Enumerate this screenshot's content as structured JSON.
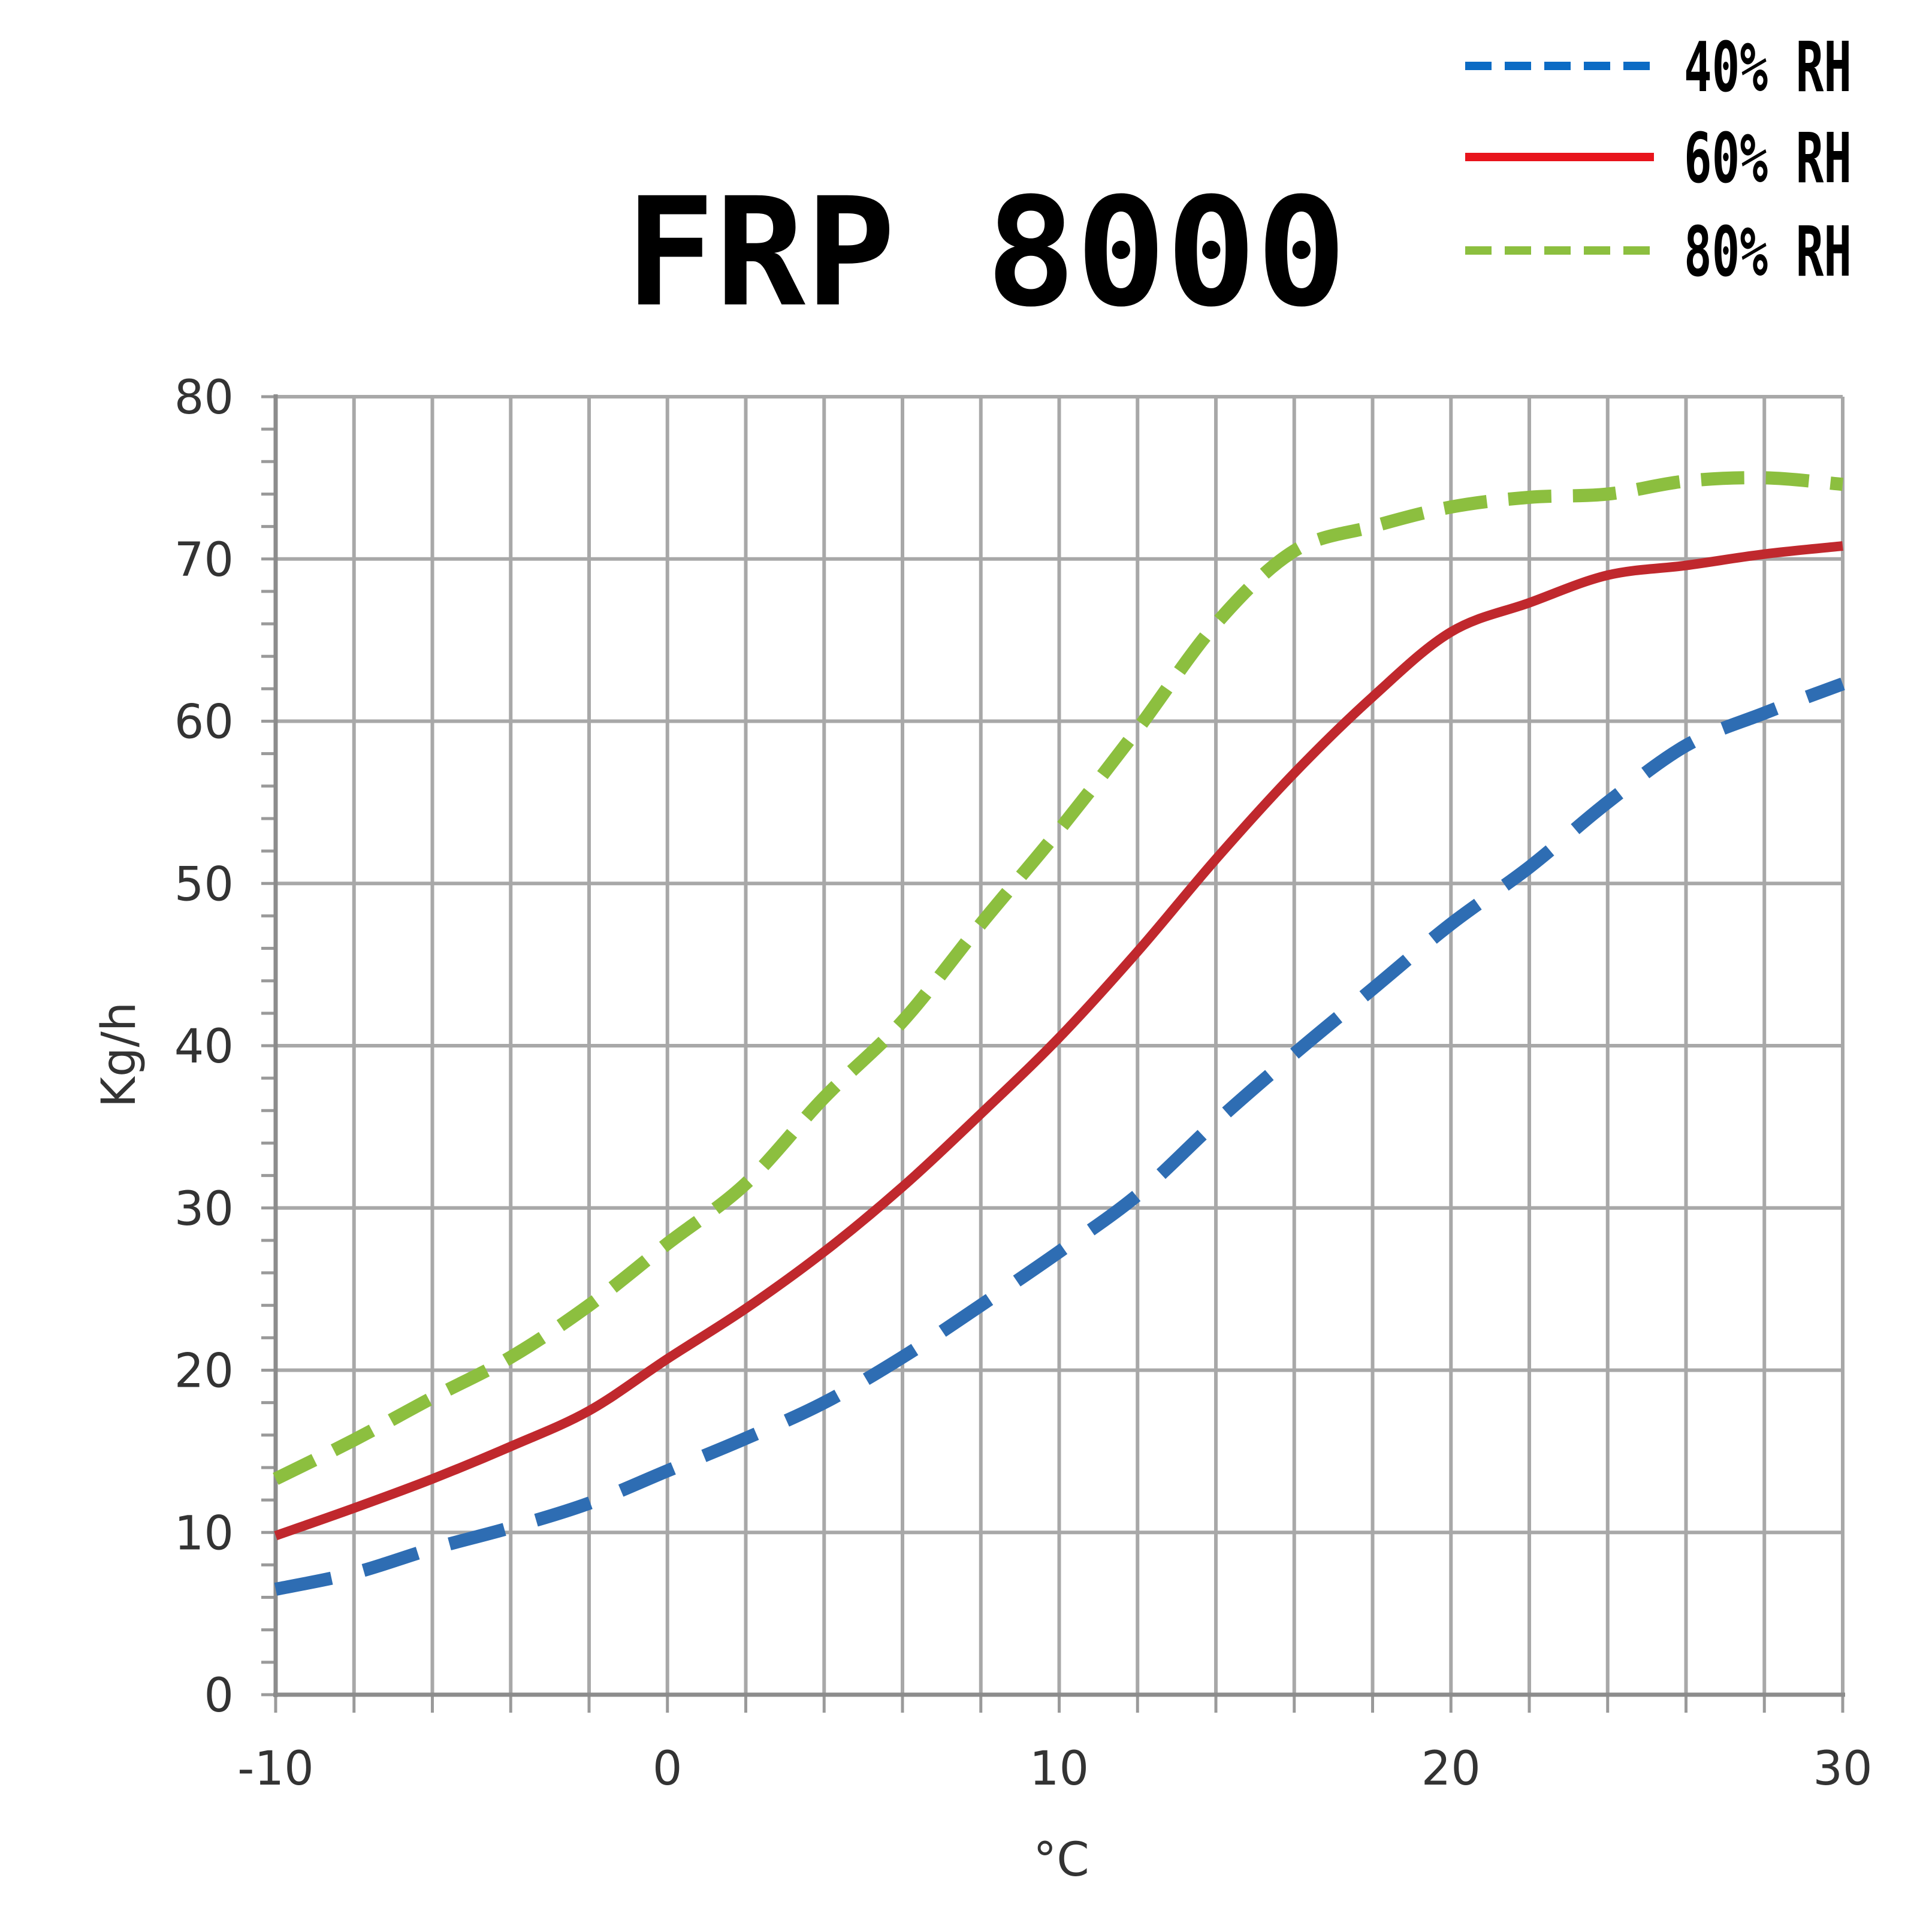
{
  "chart_data": {
    "type": "line",
    "title": "FRP 8000",
    "xlabel": "°C",
    "ylabel": "Kg/h",
    "xlim": [
      -10,
      30
    ],
    "ylim": [
      0,
      80
    ],
    "x_ticks": [
      -10,
      0,
      10,
      20,
      30
    ],
    "y_ticks": [
      0,
      10,
      20,
      30,
      40,
      50,
      60,
      70,
      80
    ],
    "x_tick_labels": [
      "-10",
      "0",
      "10",
      "20",
      "30"
    ],
    "y_tick_labels": [
      "0",
      "10",
      "20",
      "30",
      "40",
      "50",
      "60",
      "70",
      "80"
    ],
    "grid": true,
    "legend_position": "top-right",
    "x": [
      -10,
      -8,
      -6,
      -4,
      -2,
      0,
      2,
      4,
      6,
      8,
      10,
      12,
      14,
      16,
      18,
      20,
      22,
      24,
      26,
      28,
      30
    ],
    "series": [
      {
        "name": "40% RH",
        "color": "#2e6db3",
        "style": "dashed",
        "values": [
          6.5,
          7.5,
          9.0,
          10.3,
          11.8,
          13.8,
          15.8,
          18.0,
          20.8,
          24.0,
          27.3,
          30.8,
          35.3,
          39.5,
          43.5,
          47.5,
          51.0,
          55.0,
          58.5,
          60.5,
          62.3
        ]
      },
      {
        "name": "60% RH",
        "color": "#c0282d",
        "style": "solid",
        "values": [
          9.8,
          11.5,
          13.3,
          15.3,
          17.5,
          20.7,
          23.8,
          27.3,
          31.3,
          35.8,
          40.5,
          45.8,
          51.5,
          56.8,
          61.5,
          65.5,
          67.3,
          69.0,
          69.6,
          70.3,
          70.8
        ]
      },
      {
        "name": "80% RH",
        "color": "#8cbf3f",
        "style": "dashed",
        "values": [
          13.3,
          15.7,
          18.3,
          20.8,
          24.0,
          27.8,
          31.5,
          36.8,
          41.5,
          47.5,
          53.3,
          59.5,
          66.0,
          70.5,
          72.0,
          73.2,
          73.8,
          74.0,
          74.8,
          75.0,
          74.6
        ]
      }
    ]
  },
  "legend": {
    "items": [
      {
        "label": "40% RH",
        "color": "#0c6bc4",
        "style": "dashed"
      },
      {
        "label": "60% RH",
        "color": "#e8141c",
        "style": "solid"
      },
      {
        "label": "80% RH",
        "color": "#8cbf3f",
        "style": "dashed"
      }
    ]
  }
}
